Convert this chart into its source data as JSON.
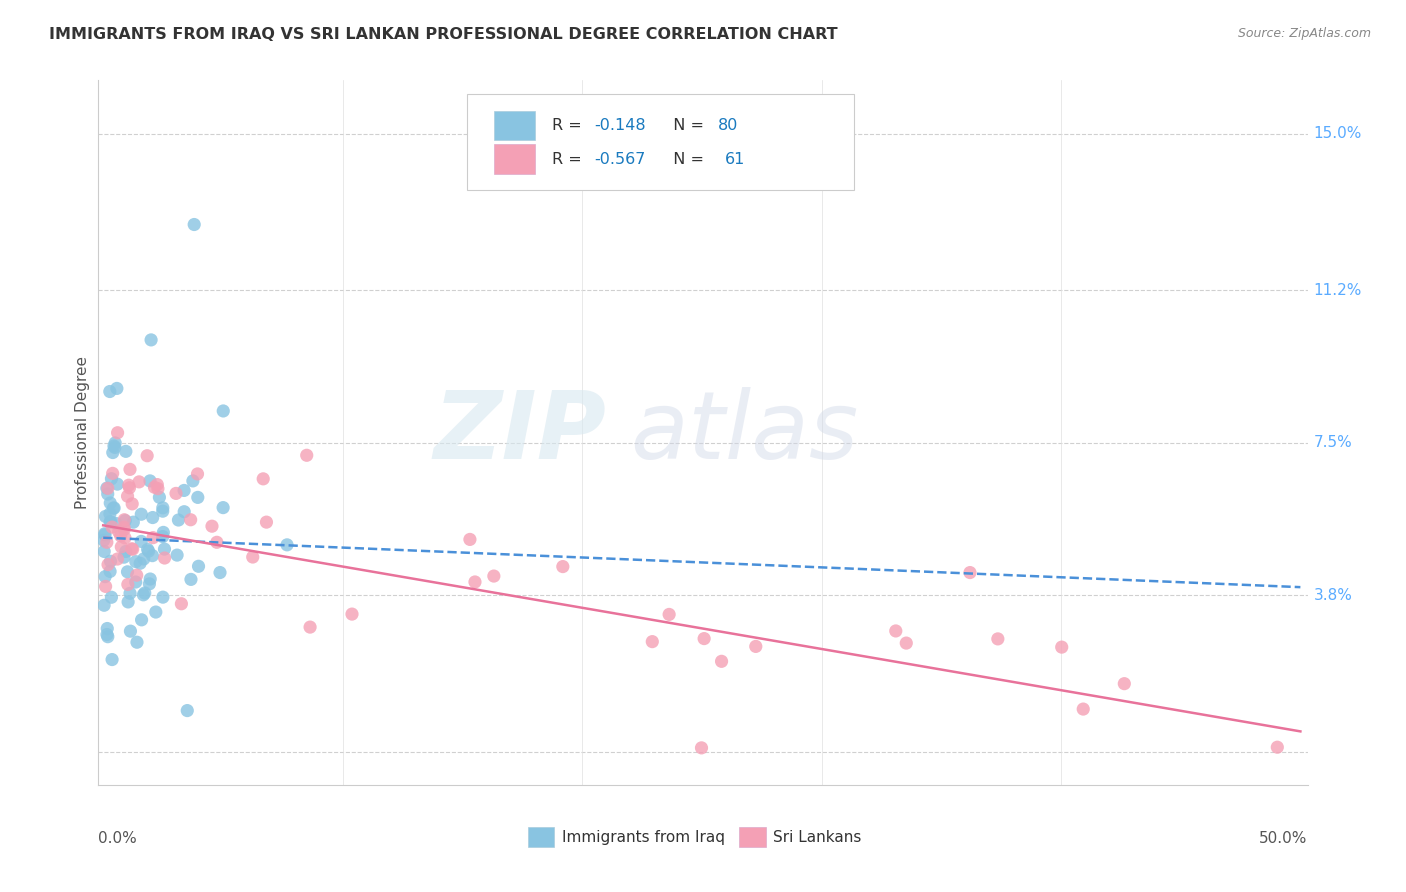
{
  "title": "IMMIGRANTS FROM IRAQ VS SRI LANKAN PROFESSIONAL DEGREE CORRELATION CHART",
  "source": "Source: ZipAtlas.com",
  "ylabel": "Professional Degree",
  "y_tick_labels_right": [
    "15.0%",
    "11.2%",
    "7.5%",
    "3.8%"
  ],
  "y_tick_values_right": [
    0.15,
    0.112,
    0.075,
    0.038
  ],
  "xlim": [
    0.0,
    0.5
  ],
  "ylim": [
    -0.005,
    0.16
  ],
  "legend1_text_black": "R = ",
  "legend1_r": "-0.148",
  "legend1_mid": "   N = ",
  "legend1_n": "80",
  "legend2_text_black": "R = ",
  "legend2_r": "-0.567",
  "legend2_mid": "   N =  ",
  "legend2_n": "61",
  "color_iraq": "#89c4e1",
  "color_srilanka": "#f4a0b5",
  "line_color_iraq": "#4a90d9",
  "line_color_srilanka": "#e8729a",
  "watermark_zip": "ZIP",
  "watermark_atlas": "atlas",
  "title_color": "#333333",
  "right_label_color": "#5aabff",
  "blue_text_color": "#1a7abf",
  "bottom_legend_iraq": "Immigrants from Iraq",
  "bottom_legend_sri": "Sri Lankans"
}
